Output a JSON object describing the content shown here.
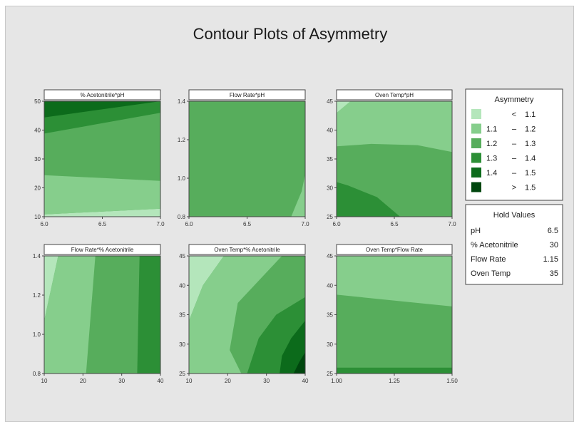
{
  "chart_data": {
    "type": "contour",
    "title": "Contour Plots of Asymmetry",
    "level_colors": [
      "#b4e6bb",
      "#86ce8c",
      "#57ad5c",
      "#2c8f36",
      "#0c6b1b",
      "#00460e"
    ],
    "legend": {
      "title": "Asymmetry",
      "rows": [
        {
          "lo": "",
          "op": "<",
          "hi": "1.1"
        },
        {
          "lo": "1.1",
          "op": "–",
          "hi": "1.2"
        },
        {
          "lo": "1.2",
          "op": "–",
          "hi": "1.3"
        },
        {
          "lo": "1.3",
          "op": "–",
          "hi": "1.4"
        },
        {
          "lo": "1.4",
          "op": "–",
          "hi": "1.5"
        },
        {
          "lo": "",
          "op": ">",
          "hi": "1.5"
        }
      ]
    },
    "hold_values": {
      "title": "Hold Values",
      "rows": [
        {
          "name": "pH",
          "value": "6.5"
        },
        {
          "name": "% Acetonitrile",
          "value": "30"
        },
        {
          "name": "Flow Rate",
          "value": "1.15"
        },
        {
          "name": "Oven Temp",
          "value": "35"
        }
      ]
    },
    "panels": [
      {
        "title": "% Acetonitrile*pH",
        "x_ticks": [
          "6.0",
          "6.5",
          "7.0"
        ],
        "y_ticks": [
          "50",
          "40",
          "30",
          "20",
          "10"
        ],
        "regions": [
          {
            "level": 2,
            "bounds": [
              [
                0,
                0
              ],
              [
                1,
                0
              ],
              [
                1,
                1
              ],
              [
                0,
                1
              ]
            ]
          },
          {
            "level": 0,
            "bounds": [
              [
                0,
                0
              ],
              [
                1,
                0
              ],
              [
                1,
                0.07
              ],
              [
                0,
                0.02
              ]
            ]
          },
          {
            "level": 1,
            "bounds": [
              [
                0,
                0.02
              ],
              [
                1,
                0.07
              ],
              [
                1,
                0.31
              ],
              [
                0,
                0.36
              ]
            ]
          },
          {
            "level": 3,
            "bounds": [
              [
                0,
                0.72
              ],
              [
                1,
                0.9
              ],
              [
                1,
                1
              ],
              [
                0,
                1
              ]
            ]
          },
          {
            "level": 4,
            "bounds": [
              [
                0,
                0.86
              ],
              [
                1,
                1
              ],
              [
                0,
                1
              ]
            ]
          }
        ]
      },
      {
        "title": "Flow Rate*pH",
        "x_ticks": [
          "6.0",
          "6.5",
          "7.0"
        ],
        "y_ticks": [
          "1.4",
          "1.2",
          "1.0",
          "0.8"
        ],
        "regions": [
          {
            "level": 2,
            "bounds": [
              [
                0,
                0
              ],
              [
                1,
                0
              ],
              [
                1,
                1
              ],
              [
                0,
                1
              ]
            ]
          },
          {
            "level": 1,
            "bounds": [
              [
                0.88,
                0
              ],
              [
                1,
                0
              ],
              [
                1,
                0.37
              ],
              [
                0.97,
                0.22
              ],
              [
                0.92,
                0.1
              ]
            ]
          }
        ]
      },
      {
        "title": "Oven Temp*pH",
        "x_ticks": [
          "6.0",
          "6.5",
          "7.0"
        ],
        "y_ticks": [
          "45",
          "40",
          "35",
          "30",
          "25"
        ],
        "regions": [
          {
            "level": 1,
            "bounds": [
              [
                0,
                0
              ],
              [
                1,
                0
              ],
              [
                1,
                1
              ],
              [
                0,
                1
              ]
            ]
          },
          {
            "level": 0,
            "bounds": [
              [
                0,
                0.9
              ],
              [
                0.12,
                1
              ],
              [
                0,
                1
              ]
            ]
          },
          {
            "level": 2,
            "bounds": [
              [
                0,
                0
              ],
              [
                1,
                0
              ],
              [
                1,
                0.56
              ],
              [
                0.7,
                0.62
              ],
              [
                0.3,
                0.63
              ],
              [
                0,
                0.61
              ]
            ]
          },
          {
            "level": 3,
            "bounds": [
              [
                0,
                0
              ],
              [
                0.55,
                0
              ],
              [
                0.35,
                0.17
              ],
              [
                0.1,
                0.27
              ],
              [
                0,
                0.3
              ]
            ]
          }
        ]
      },
      {
        "title": "Flow Rate*% Acetonitrile",
        "x_ticks": [
          "10",
          "20",
          "30",
          "40"
        ],
        "y_ticks": [
          "1.4",
          "1.2",
          "1.0",
          "0.8"
        ],
        "regions": [
          {
            "level": 2,
            "bounds": [
              [
                0,
                0
              ],
              [
                1,
                0
              ],
              [
                1,
                1
              ],
              [
                0,
                1
              ]
            ]
          },
          {
            "level": 0,
            "bounds": [
              [
                0,
                0.45
              ],
              [
                0.12,
                1
              ],
              [
                0,
                1
              ]
            ]
          },
          {
            "level": 1,
            "bounds": [
              [
                0.12,
                1
              ],
              [
                0.44,
                1
              ],
              [
                0.36,
                0
              ],
              [
                0,
                0
              ],
              [
                0,
                0.45
              ]
            ]
          },
          {
            "level": 3,
            "bounds": [
              [
                0.8,
                0
              ],
              [
                1,
                0
              ],
              [
                1,
                1
              ],
              [
                0.82,
                1
              ]
            ]
          }
        ]
      },
      {
        "title": "Oven Temp*% Acetonitrile",
        "x_ticks": [
          "10",
          "20",
          "30",
          "40"
        ],
        "y_ticks": [
          "45",
          "40",
          "35",
          "30",
          "25"
        ],
        "regions": [
          {
            "level": 2,
            "bounds": [
              [
                0,
                0
              ],
              [
                1,
                0
              ],
              [
                1,
                1
              ],
              [
                0,
                1
              ]
            ]
          },
          {
            "level": 0,
            "bounds": [
              [
                0,
                0.45
              ],
              [
                0.12,
                0.75
              ],
              [
                0.3,
                1
              ],
              [
                0,
                1
              ]
            ]
          },
          {
            "level": 1,
            "bounds": [
              [
                0,
                0
              ],
              [
                0.45,
                0
              ],
              [
                0.35,
                0.2
              ],
              [
                0.42,
                0.6
              ],
              [
                0.8,
                1
              ],
              [
                0.3,
                1
              ],
              [
                0.12,
                0.75
              ],
              [
                0,
                0.45
              ]
            ]
          },
          {
            "level": 3,
            "bounds": [
              [
                0.5,
                0
              ],
              [
                1,
                0
              ],
              [
                1,
                0.65
              ],
              [
                0.75,
                0.5
              ],
              [
                0.6,
                0.3
              ]
            ]
          },
          {
            "level": 4,
            "bounds": [
              [
                0.78,
                0
              ],
              [
                1,
                0
              ],
              [
                1,
                0.45
              ],
              [
                0.88,
                0.3
              ],
              [
                0.8,
                0.15
              ]
            ]
          },
          {
            "level": 5,
            "bounds": [
              [
                0.9,
                0
              ],
              [
                1,
                0
              ],
              [
                1,
                0.18
              ],
              [
                0.95,
                0.1
              ]
            ]
          }
        ]
      },
      {
        "title": "Oven Temp*Flow Rate",
        "x_ticks": [
          "1.00",
          "1.25",
          "1.50"
        ],
        "y_ticks": [
          "45",
          "40",
          "35",
          "30",
          "25"
        ],
        "regions": [
          {
            "level": 1,
            "bounds": [
              [
                0,
                0
              ],
              [
                1,
                0
              ],
              [
                1,
                1
              ],
              [
                0,
                1
              ]
            ]
          },
          {
            "level": 2,
            "bounds": [
              [
                0,
                0
              ],
              [
                1,
                0
              ],
              [
                1,
                0.57
              ],
              [
                0,
                0.67
              ]
            ]
          },
          {
            "level": 3,
            "bounds": [
              [
                0,
                0
              ],
              [
                1,
                0
              ],
              [
                1,
                0.05
              ],
              [
                0,
                0.05
              ]
            ]
          }
        ]
      }
    ]
  }
}
